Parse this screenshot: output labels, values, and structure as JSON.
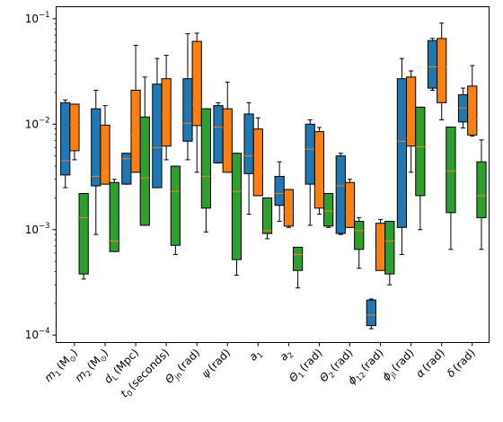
{
  "chart_data": {
    "type": "box",
    "yscale": "log",
    "ylim": [
      8.5e-05,
      0.13
    ],
    "y_ticks": [
      {
        "value": 0.0001,
        "base": "10",
        "exp": "−4"
      },
      {
        "value": 0.001,
        "base": "10",
        "exp": "−3"
      },
      {
        "value": 0.01,
        "base": "10",
        "exp": "−2"
      },
      {
        "value": 0.1,
        "base": "10",
        "exp": "−1"
      }
    ],
    "categories": [
      {
        "sym": "m",
        "sub": "1",
        "unit": "(M",
        "usub": "⊙",
        "tail": ")"
      },
      {
        "sym": "m",
        "sub": "2",
        "unit": "(M",
        "usub": "⊙",
        "tail": ")"
      },
      {
        "sym": "d",
        "sub": "L",
        "unit": "(Mpc)",
        "usub": "",
        "tail": ""
      },
      {
        "sym": "t",
        "sub": "0",
        "unit": "(seconds)",
        "usub": "",
        "tail": ""
      },
      {
        "sym": "Θ",
        "sub": "jn",
        "unit": "(rad)",
        "usub": "",
        "tail": ""
      },
      {
        "sym": "ψ",
        "sub": "",
        "unit": "(rad)",
        "usub": "",
        "tail": ""
      },
      {
        "sym": "a",
        "sub": "1",
        "unit": "",
        "usub": "",
        "tail": ""
      },
      {
        "sym": "a",
        "sub": "2",
        "unit": "",
        "usub": "",
        "tail": ""
      },
      {
        "sym": "Θ",
        "sub": "1",
        "unit": "(rad)",
        "usub": "",
        "tail": ""
      },
      {
        "sym": "Θ",
        "sub": "2",
        "unit": "(rad)",
        "usub": "",
        "tail": ""
      },
      {
        "sym": "ϕ",
        "sub": "12",
        "unit": "(rad)",
        "usub": "",
        "tail": ""
      },
      {
        "sym": "ϕ",
        "sub": "jl",
        "unit": "(rad)",
        "usub": "",
        "tail": ""
      },
      {
        "sym": "α",
        "sub": "",
        "unit": "(rad)",
        "usub": "",
        "tail": ""
      },
      {
        "sym": "δ",
        "sub": "",
        "unit": "(rad)",
        "usub": "",
        "tail": ""
      }
    ],
    "series": [
      {
        "color": "#1f77b4",
        "boxes": [
          {
            "wlo": 0.0025,
            "q1": 0.0033,
            "med": 0.0045,
            "q3": 0.016,
            "whi": 0.017
          },
          {
            "wlo": 0.0009,
            "q1": 0.0026,
            "med": 0.0032,
            "q3": 0.014,
            "whi": 0.021
          },
          {
            "wlo": 0.0027,
            "q1": 0.0027,
            "med": 0.0047,
            "q3": 0.0053,
            "whi": 0.0053
          },
          {
            "wlo": 0.0025,
            "q1": 0.0025,
            "med": 0.006,
            "q3": 0.024,
            "whi": 0.042
          },
          {
            "wlo": 0.0046,
            "q1": 0.0069,
            "med": 0.0102,
            "q3": 0.027,
            "whi": 0.072
          },
          {
            "wlo": 0.0043,
            "q1": 0.0043,
            "med": 0.0094,
            "q3": 0.015,
            "whi": 0.016
          },
          {
            "wlo": 0.0014,
            "q1": 0.0034,
            "med": 0.005,
            "q3": 0.0125,
            "whi": 0.016
          },
          {
            "wlo": 0.0012,
            "q1": 0.0017,
            "med": 0.0022,
            "q3": 0.0032,
            "whi": 0.0044
          },
          {
            "wlo": 0.0011,
            "q1": 0.0027,
            "med": 0.0058,
            "q3": 0.01,
            "whi": 0.011
          },
          {
            "wlo": 0.0009,
            "q1": 0.00092,
            "med": 0.0026,
            "q3": 0.005,
            "whi": 0.0053
          },
          {
            "wlo": 0.000115,
            "q1": 0.000123,
            "med": 0.000155,
            "q3": 0.000215,
            "whi": 0.00022
          },
          {
            "wlo": 0.00058,
            "q1": 0.00105,
            "med": 0.0069,
            "q3": 0.027,
            "whi": 0.042
          },
          {
            "wlo": 0.021,
            "q1": 0.022,
            "med": 0.035,
            "q3": 0.062,
            "whi": 0.065
          },
          {
            "wlo": 0.0092,
            "q1": 0.0105,
            "med": 0.0143,
            "q3": 0.019,
            "whi": 0.022
          }
        ]
      },
      {
        "color": "#ff7f0e",
        "boxes": [
          {
            "wlo": 0.0046,
            "q1": 0.0056,
            "med": 0.0098,
            "q3": 0.0155,
            "whi": 0.0155
          },
          {
            "wlo": 0.0027,
            "q1": 0.0027,
            "med": 0.0035,
            "q3": 0.0098,
            "whi": 0.015
          },
          {
            "wlo": 0.0035,
            "q1": 0.0035,
            "med": 0.0078,
            "q3": 0.021,
            "whi": 0.056
          },
          {
            "wlo": 0.0046,
            "q1": 0.0062,
            "med": 0.0115,
            "q3": 0.027,
            "whi": 0.045
          },
          {
            "wlo": 0.0035,
            "q1": 0.0097,
            "med": 0.0155,
            "q3": 0.061,
            "whi": 0.073
          },
          {
            "wlo": 0.0035,
            "q1": 0.0035,
            "med": 0.0092,
            "q3": 0.014,
            "whi": 0.025
          },
          {
            "wlo": 0.0021,
            "q1": 0.0021,
            "med": 0.0035,
            "q3": 0.009,
            "whi": 0.0115
          },
          {
            "wlo": 0.00105,
            "q1": 0.00108,
            "med": 0.00148,
            "q3": 0.0024,
            "whi": 0.0024
          },
          {
            "wlo": 0.0014,
            "q1": 0.0016,
            "med": 0.0024,
            "q3": 0.0085,
            "whi": 0.0093
          },
          {
            "wlo": 0.00105,
            "q1": 0.00105,
            "med": 0.00145,
            "q3": 0.0028,
            "whi": 0.003
          },
          {
            "wlo": 0.00045,
            "q1": 0.00041,
            "med": 0.00062,
            "q3": 0.00115,
            "whi": 0.00125
          },
          {
            "wlo": 0.0035,
            "q1": 0.0062,
            "med": 0.0074,
            "q3": 0.028,
            "whi": 0.032
          },
          {
            "wlo": 0.011,
            "q1": 0.016,
            "med": 0.035,
            "q3": 0.065,
            "whi": 0.091
          },
          {
            "wlo": 0.0077,
            "q1": 0.0079,
            "med": 0.0111,
            "q3": 0.023,
            "whi": 0.036
          }
        ]
      },
      {
        "color": "#2ca02c",
        "boxes": [
          {
            "wlo": 0.00034,
            "q1": 0.00038,
            "med": 0.0013,
            "q3": 0.0022,
            "whi": 0.0022
          },
          {
            "wlo": 0.00062,
            "q1": 0.00062,
            "med": 0.00078,
            "q3": 0.0028,
            "whi": 0.003
          },
          {
            "wlo": 0.0011,
            "q1": 0.0011,
            "med": 0.0031,
            "q3": 0.0117,
            "whi": 0.028
          },
          {
            "wlo": 0.00058,
            "q1": 0.00071,
            "med": 0.0023,
            "q3": 0.004,
            "whi": 0.004
          },
          {
            "wlo": 0.00095,
            "q1": 0.0016,
            "med": 0.0032,
            "q3": 0.014,
            "whi": 0.014
          },
          {
            "wlo": 0.00037,
            "q1": 0.00052,
            "med": 0.0023,
            "q3": 0.0053,
            "whi": 0.0053
          },
          {
            "wlo": 0.00082,
            "q1": 0.00092,
            "med": 0.00098,
            "q3": 0.002,
            "whi": 0.002
          },
          {
            "wlo": 0.00028,
            "q1": 0.00041,
            "med": 0.00058,
            "q3": 0.00068,
            "whi": 0.00068
          },
          {
            "wlo": 0.00105,
            "q1": 0.00108,
            "med": 0.0015,
            "q3": 0.0022,
            "whi": 0.0022
          },
          {
            "wlo": 0.00043,
            "q1": 0.00065,
            "med": 0.00098,
            "q3": 0.0012,
            "whi": 0.0013
          },
          {
            "wlo": 0.0003,
            "q1": 0.00038,
            "med": 0.00078,
            "q3": 0.0012,
            "whi": 0.0012
          },
          {
            "wlo": 0.001,
            "q1": 0.0021,
            "med": 0.0061,
            "q3": 0.0145,
            "whi": 0.0145
          },
          {
            "wlo": 0.00065,
            "q1": 0.00145,
            "med": 0.0036,
            "q3": 0.0094,
            "whi": 0.0094
          },
          {
            "wlo": 0.00065,
            "q1": 0.0013,
            "med": 0.0021,
            "q3": 0.0044,
            "whi": 0.0071
          }
        ]
      }
    ],
    "median_color": "#ff7f0e",
    "legend": null,
    "grid": false
  }
}
